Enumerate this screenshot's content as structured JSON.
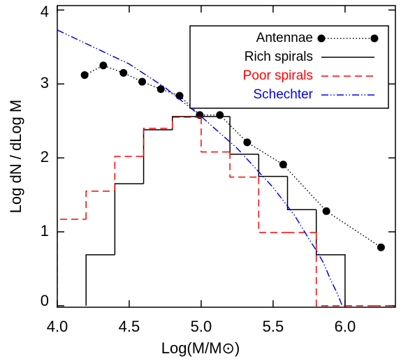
{
  "chart_data": {
    "type": "line",
    "xlabel": "Log(M/M⊙)",
    "ylabel": "Log dN / dLog M",
    "xlim": [
      4.0,
      6.35
    ],
    "ylim": [
      -0.02,
      4.06
    ],
    "xticks": [
      {
        "value": 4,
        "label": "4.0"
      },
      4.5,
      {
        "value": 5,
        "label": "5.0"
      },
      5.5,
      {
        "value": 6,
        "label": "6.0"
      }
    ],
    "yticks": [
      0,
      1,
      2,
      3,
      4
    ],
    "legend": "upper right",
    "series": [
      {
        "name": "Antennae",
        "type": "line-markers",
        "color": "#000000",
        "dash": "dotted",
        "x": [
          4.19,
          4.32,
          4.46,
          4.59,
          4.72,
          4.85,
          4.99,
          5.13,
          5.32,
          5.57,
          5.87,
          6.25
        ],
        "values": [
          3.12,
          3.25,
          3.15,
          3.03,
          2.93,
          2.84,
          2.58,
          2.58,
          2.21,
          1.91,
          1.28,
          0.79
        ]
      },
      {
        "name": "Rich spirals",
        "type": "histogram",
        "color": "#000000",
        "dash": "solid",
        "bins": [
          4.2,
          4.4,
          4.6,
          4.8,
          5.0,
          5.2,
          5.4,
          5.6,
          5.8,
          6.0
        ],
        "values": [
          0.69,
          1.65,
          2.38,
          2.56,
          2.56,
          2.05,
          1.75,
          1.3,
          0.69
        ]
      },
      {
        "name": "Poor spirals",
        "type": "histogram",
        "color": "#ff0000",
        "dash": "dashed",
        "bins": [
          4.0,
          4.2,
          4.4,
          4.6,
          4.8,
          5.0,
          5.2,
          5.4,
          5.6,
          5.8,
          6.0,
          6.2,
          6.4
        ],
        "values": [
          1.17,
          1.55,
          2.02,
          2.4,
          2.55,
          2.08,
          1.74,
          0.99,
          0.99,
          0,
          0,
          0
        ]
      },
      {
        "name": "Schechter",
        "type": "line",
        "color": "#0000ff",
        "dash": "dash-dot-dot",
        "x": [
          4.0,
          4.25,
          4.5,
          4.75,
          5.0,
          5.25,
          5.5,
          5.65,
          5.75,
          5.8,
          5.85,
          5.9,
          5.95,
          5.98
        ],
        "values": [
          3.73,
          3.5,
          3.27,
          2.95,
          2.56,
          2.13,
          1.6,
          1.22,
          0.9,
          0.75,
          0.58,
          0.35,
          0.15,
          0
        ]
      }
    ]
  }
}
